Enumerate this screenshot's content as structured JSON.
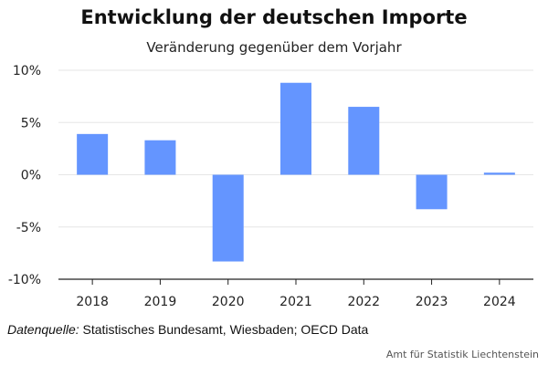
{
  "title": "Entwicklung der deutschen Importe",
  "subtitle": "Veränderung gegenüber dem Vorjahr",
  "source_label": "Datenquelle:",
  "source_text": " Statistisches Bundesamt, Wiesbaden; OECD Data",
  "footer": "Amt für Statistik Liechtenstein",
  "colors": {
    "bar": "#6495ff",
    "grid": "#e6e6e6",
    "axis": "#222222"
  },
  "chart_data": {
    "type": "bar",
    "categories": [
      "2018",
      "2019",
      "2020",
      "2021",
      "2022",
      "2023",
      "2024"
    ],
    "values": [
      3.9,
      3.3,
      -8.3,
      8.8,
      6.5,
      -3.3,
      0.2
    ],
    "ylim": [
      -10,
      10
    ],
    "yticks": [
      10,
      5,
      0,
      -5,
      -10
    ],
    "ytick_labels": [
      "10%",
      "5%",
      "0%",
      "-5%",
      "-10%"
    ],
    "grid": true
  }
}
